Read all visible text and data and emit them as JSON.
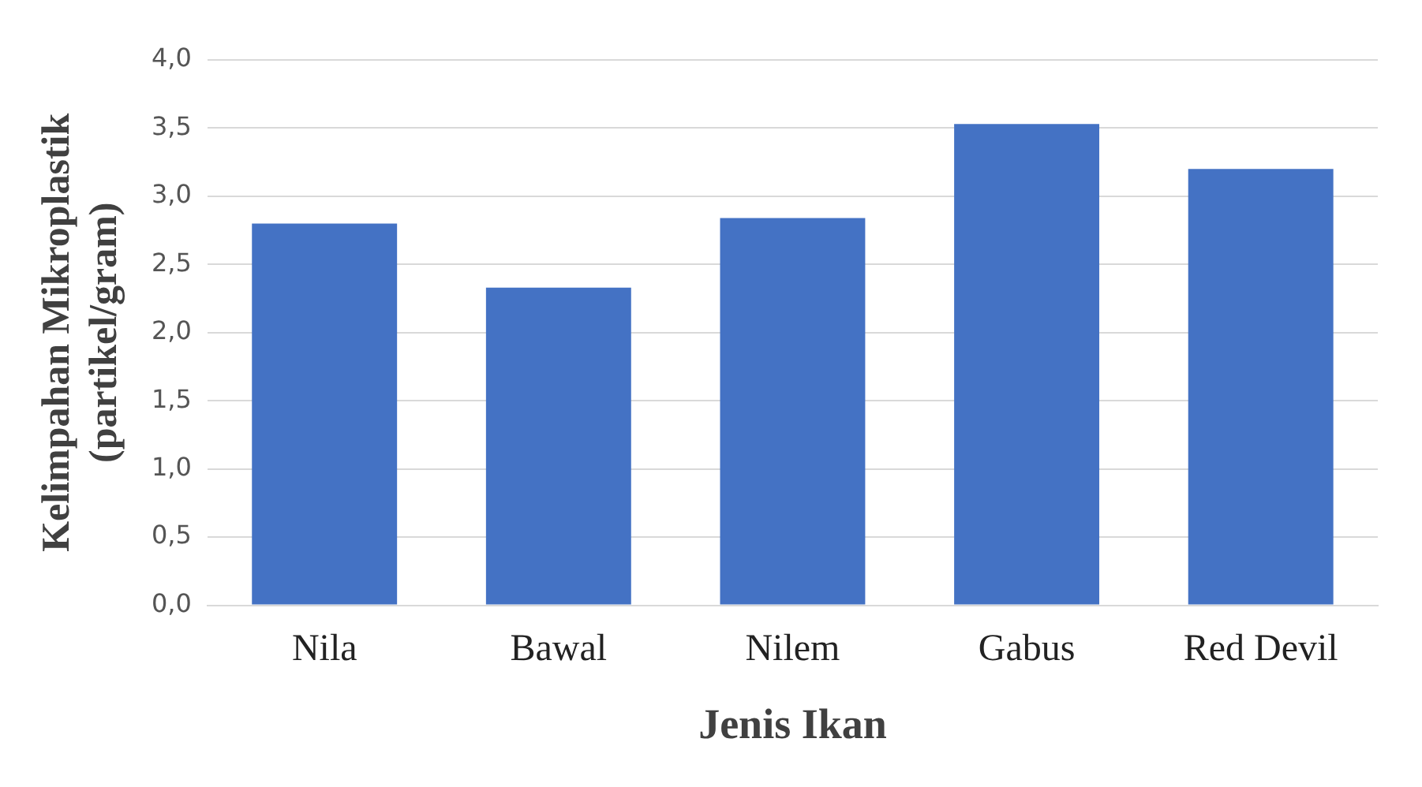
{
  "chart_data": {
    "type": "bar",
    "xlabel": "Jenis Ikan",
    "ylabel": "Kelimpahan Mikroplastik (partikel/gram)",
    "categories": [
      "Nila",
      "Bawal",
      "Nilem",
      "Gabus",
      "Red Devil"
    ],
    "values": [
      2.8,
      2.33,
      2.84,
      3.53,
      3.2
    ],
    "color": "#4472c4",
    "ylim": [
      0,
      4
    ],
    "yticks": [
      {
        "value": 0,
        "label": "0,0"
      },
      {
        "value": 0.5,
        "label": "0,5"
      },
      {
        "value": 1,
        "label": "1,0"
      },
      {
        "value": 1.5,
        "label": "1,5"
      },
      {
        "value": 2,
        "label": "2,0"
      },
      {
        "value": 2.5,
        "label": "2,5"
      },
      {
        "value": 3,
        "label": "3,0"
      },
      {
        "value": 3.5,
        "label": "3,5"
      },
      {
        "value": 4,
        "label": "4,0"
      }
    ],
    "grid": "y",
    "legend": false
  }
}
